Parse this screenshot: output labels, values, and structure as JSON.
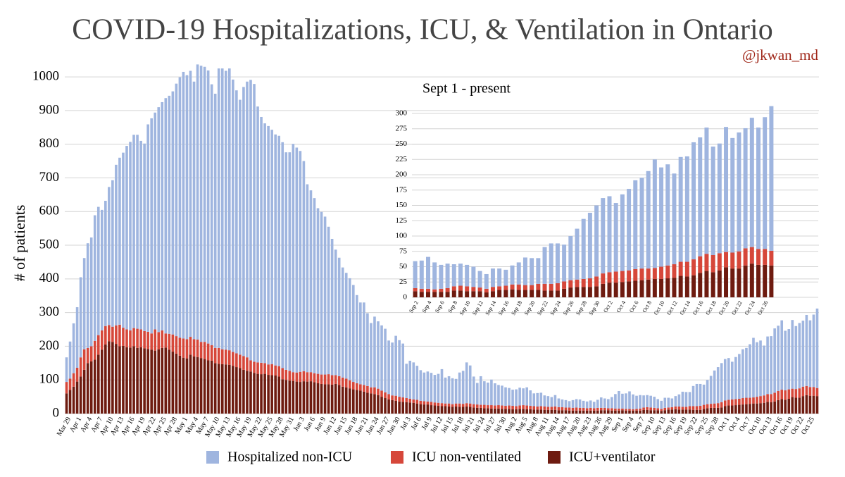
{
  "chart_data": [
    {
      "type": "bar",
      "stacked": true,
      "grid": true,
      "legend": "bottom",
      "title": "COVID-19 Hospitalizations, ICU, & Ventilation in Ontario",
      "subtitle": "@jkwan_md",
      "y_label": "# of patients",
      "ylim": [
        0,
        1040
      ],
      "yticks": [
        0,
        100,
        200,
        300,
        400,
        500,
        600,
        700,
        800,
        900,
        1000
      ],
      "categories": [
        "Mar 29",
        null,
        null,
        "Apr 1",
        null,
        null,
        "Apr 4",
        null,
        null,
        "Apr 7",
        null,
        null,
        "Apr 10",
        null,
        null,
        "Apr 13",
        null,
        null,
        "Apr 16",
        null,
        null,
        "Apr 19",
        null,
        null,
        "Apr 22",
        null,
        null,
        "Apr 25",
        null,
        null,
        "Apr 28",
        null,
        null,
        "May 1",
        null,
        null,
        "May 4",
        null,
        null,
        "May 7",
        null,
        null,
        "May 10",
        null,
        null,
        "May 13",
        null,
        null,
        "May 16",
        null,
        null,
        "May 19",
        null,
        null,
        "May 22",
        null,
        null,
        "May 25",
        null,
        null,
        "May 28",
        null,
        null,
        "May 31",
        null,
        null,
        "Jun 3",
        null,
        null,
        "Jun 6",
        null,
        null,
        "Jun 9",
        null,
        null,
        "Jun 12",
        null,
        null,
        "Jun 15",
        null,
        null,
        "Jun 18",
        null,
        null,
        "Jun 21",
        null,
        null,
        "Jun 24",
        null,
        null,
        "Jun 27",
        null,
        null,
        "Jun 30",
        null,
        null,
        "Jul 3",
        null,
        null,
        "Jul 6",
        null,
        null,
        "Jul 9",
        null,
        null,
        "Jul 12",
        null,
        null,
        "Jul 15",
        null,
        null,
        "Jul 18",
        null,
        null,
        "Jul 21",
        null,
        null,
        "Jul 24",
        null,
        null,
        "Jul 27",
        null,
        null,
        "Jul 30",
        null,
        null,
        "Aug 2",
        null,
        null,
        "Aug 5",
        null,
        null,
        "Aug 8",
        null,
        null,
        "Aug 11",
        null,
        null,
        "Aug 14",
        null,
        null,
        "Aug 17",
        null,
        null,
        "Aug 20",
        null,
        null,
        "Aug 23",
        null,
        null,
        "Aug 26",
        null,
        null,
        "Aug 29",
        null,
        null,
        "Sep 1",
        null,
        null,
        "Sep 4",
        null,
        null,
        "Sep 7",
        null,
        null,
        "Sep 10",
        null,
        null,
        "Sep 13",
        null,
        null,
        "Sep 16",
        null,
        null,
        "Sep 19",
        null,
        null,
        "Sep 22",
        null,
        null,
        "Sep 25",
        null,
        null,
        "Sep 28",
        null,
        null,
        "Oct 1",
        null,
        null,
        "Oct 4",
        null,
        null,
        "Oct 7",
        null,
        null,
        "Oct 10",
        null,
        null,
        "Oct 13",
        null,
        null,
        "Oct 16",
        null,
        null,
        "Oct 19",
        null,
        null,
        "Oct 22",
        null,
        null,
        "Oct 25",
        null,
        null
      ],
      "series": [
        {
          "name": "Hospitalized non-ICU",
          "color": "#9fb5df",
          "values": [
            73,
            110,
            148,
            180,
            238,
            271,
            311,
            323,
            373,
            381,
            358,
            372,
            410,
            435,
            477,
            496,
            520,
            545,
            560,
            574,
            576,
            560,
            557,
            616,
            639,
            644,
            668,
            678,
            699,
            707,
            722,
            750,
            774,
            792,
            784,
            790,
            765,
            817,
            820,
            817,
            811,
            775,
            755,
            830,
            834,
            828,
            837,
            809,
            781,
            757,
            799,
            819,
            833,
            825,
            760,
            730,
            712,
            708,
            696,
            686,
            684,
            671,
            646,
            649,
            678,
            668,
            656,
            624,
            558,
            540,
            520,
            492,
            483,
            469,
            438,
            405,
            373,
            352,
            327,
            314,
            303,
            288,
            262,
            243,
            245,
            216,
            191,
            210,
            200,
            194,
            189,
            159,
            157,
            178,
            168,
            160,
            102,
            113,
            110,
            101,
            91,
            85,
            89,
            86,
            82,
            86,
            101,
            77,
            81,
            77,
            73,
            92,
            98,
            121,
            113,
            82,
            64,
            85,
            70,
            67,
            76,
            66,
            60,
            59,
            55,
            52,
            48,
            50,
            53,
            50,
            54,
            46,
            38,
            40,
            40,
            33,
            32,
            29,
            34,
            26,
            23,
            22,
            19,
            23,
            25,
            25,
            21,
            20,
            22,
            19,
            24,
            31,
            28,
            27,
            33,
            43,
            52,
            44,
            46,
            52,
            44,
            39,
            40,
            36,
            36,
            35,
            33,
            27,
            24,
            30,
            29,
            26,
            31,
            36,
            45,
            44,
            42,
            60,
            66,
            65,
            60,
            72,
            83,
            98,
            107,
            116,
            123,
            124,
            112,
            125,
            133,
            145,
            148,
            159,
            177,
            162,
            165,
            148,
            171,
            172,
            191,
            194,
            206,
            177,
            179,
            204,
            187,
            194,
            196,
            211,
            198,
            215,
            236
          ]
        },
        {
          "name": "ICU non-ventilated",
          "color": "#d6473a",
          "values": [
            34,
            34,
            40,
            41,
            57,
            61,
            45,
            45,
            56,
            58,
            57,
            55,
            48,
            45,
            55,
            64,
            54,
            53,
            51,
            54,
            57,
            53,
            51,
            51,
            48,
            63,
            51,
            52,
            42,
            47,
            51,
            52,
            53,
            57,
            57,
            53,
            51,
            52,
            48,
            51,
            50,
            46,
            45,
            47,
            44,
            44,
            43,
            41,
            41,
            40,
            41,
            40,
            33,
            33,
            34,
            34,
            32,
            31,
            33,
            30,
            31,
            33,
            30,
            29,
            26,
            27,
            30,
            30,
            28,
            27,
            27,
            28,
            28,
            29,
            30,
            28,
            26,
            26,
            27,
            26,
            24,
            22,
            20,
            19,
            20,
            20,
            18,
            20,
            19,
            18,
            17,
            16,
            14,
            15,
            14,
            13,
            12,
            11,
            10,
            11,
            10,
            10,
            9,
            10,
            9,
            9,
            9,
            8,
            9,
            8,
            9,
            10,
            9,
            10,
            10,
            10,
            10,
            9,
            10,
            9,
            10,
            9,
            10,
            10,
            9,
            10,
            10,
            9,
            10,
            11,
            11,
            10,
            10,
            9,
            10,
            10,
            9,
            9,
            10,
            9,
            9,
            8,
            9,
            8,
            9,
            8,
            8,
            7,
            8,
            7,
            8,
            7,
            7,
            6,
            7,
            6,
            6,
            5,
            5,
            5,
            4,
            5,
            6,
            7,
            8,
            8,
            7,
            6,
            6,
            7,
            6,
            7,
            8,
            9,
            8,
            8,
            10,
            11,
            11,
            12,
            12,
            12,
            12,
            13,
            14,
            16,
            17,
            17,
            18,
            18,
            18,
            19,
            19,
            18,
            18,
            20,
            21,
            22,
            23,
            24,
            26,
            27,
            28,
            28,
            28,
            25,
            26,
            28,
            28,
            27,
            26,
            26,
            24
          ]
        },
        {
          "name": "ICU+ventilator",
          "color": "#6e1b10",
          "values": [
            60,
            70,
            80,
            95,
            110,
            130,
            150,
            155,
            160,
            175,
            190,
            205,
            215,
            213,
            207,
            200,
            201,
            197,
            196,
            200,
            195,
            197,
            194,
            192,
            190,
            187,
            191,
            195,
            196,
            190,
            184,
            178,
            172,
            166,
            164,
            175,
            170,
            168,
            165,
            162,
            158,
            157,
            150,
            148,
            147,
            146,
            145,
            142,
            138,
            135,
            130,
            127,
            125,
            121,
            118,
            117,
            118,
            115,
            114,
            113,
            110,
            102,
            100,
            98,
            97,
            95,
            94,
            96,
            95,
            96,
            93,
            90,
            88,
            87,
            87,
            86,
            88,
            85,
            80,
            78,
            75,
            72,
            70,
            68,
            65,
            62,
            60,
            58,
            55,
            50,
            46,
            42,
            40,
            38,
            36,
            35,
            34,
            33,
            32,
            30,
            28,
            27,
            27,
            25,
            24,
            23,
            22,
            22,
            21,
            20,
            21,
            20,
            20,
            21,
            20,
            18,
            17,
            17,
            16,
            16,
            15,
            15,
            15,
            14,
            14,
            14,
            13,
            13,
            14,
            14,
            13,
            13,
            12,
            12,
            12,
            11,
            11,
            11,
            11,
            10,
            10,
            10,
            9,
            9,
            9,
            9,
            9,
            9,
            9,
            9,
            9,
            10,
            10,
            10,
            9,
            9,
            9,
            10,
            9,
            9,
            9,
            9,
            9,
            11,
            11,
            10,
            10,
            10,
            8,
            10,
            12,
            12,
            13,
            12,
            12,
            12,
            12,
            11,
            11,
            11,
            14,
            16,
            17,
            17,
            17,
            18,
            22,
            24,
            24,
            25,
            26,
            27,
            28,
            29,
            30,
            30,
            31,
            32,
            35,
            34,
            36,
            40,
            43,
            41,
            44,
            49,
            47,
            47,
            52,
            55,
            53,
            53,
            52
          ]
        }
      ]
    },
    {
      "type": "bar",
      "stacked": true,
      "grid": true,
      "title": "Sept 1 - present",
      "ylim": [
        0,
        315
      ],
      "yticks": [
        0,
        25,
        50,
        75,
        100,
        125,
        150,
        175,
        200,
        225,
        250,
        275,
        300
      ],
      "categories": [
        "Sep 2",
        null,
        "Sep 4",
        null,
        "Sep 6",
        null,
        "Sep 8",
        null,
        "Sep 10",
        null,
        "Sep 12",
        null,
        "Sep 14",
        null,
        "Sep 16",
        null,
        "Sep 18",
        null,
        "Sep 20",
        null,
        "Sep 22",
        null,
        "Sep 24",
        null,
        "Sep 26",
        null,
        "Sep 28",
        null,
        "Sep 30",
        null,
        "Oct 2",
        null,
        "Oct 4",
        null,
        "Oct 6",
        null,
        "Oct 8",
        null,
        "Oct 10",
        null,
        "Oct 12",
        null,
        "Oct 14",
        null,
        "Oct 16",
        null,
        "Oct 18",
        null,
        "Oct 20",
        null,
        "Oct 22",
        null,
        "Oct 24",
        null,
        "Oct 26",
        null
      ],
      "series": [
        {
          "color": "#9fb5df",
          "values": [
            44,
            46,
            52,
            44,
            39,
            40,
            36,
            36,
            35,
            33,
            27,
            24,
            30,
            29,
            26,
            31,
            36,
            45,
            44,
            42,
            60,
            66,
            65,
            60,
            72,
            83,
            98,
            107,
            116,
            123,
            124,
            112,
            125,
            133,
            145,
            148,
            159,
            177,
            162,
            165,
            148,
            171,
            172,
            191,
            194,
            206,
            177,
            179,
            204,
            187,
            194,
            196,
            211,
            198,
            215,
            236
          ]
        },
        {
          "color": "#d6473a",
          "values": [
            5,
            5,
            5,
            4,
            5,
            6,
            7,
            8,
            8,
            7,
            6,
            6,
            7,
            6,
            7,
            8,
            9,
            8,
            8,
            10,
            11,
            11,
            12,
            12,
            12,
            12,
            13,
            14,
            16,
            17,
            17,
            18,
            18,
            18,
            19,
            19,
            18,
            18,
            20,
            21,
            22,
            23,
            24,
            26,
            27,
            28,
            28,
            28,
            25,
            26,
            28,
            28,
            27,
            26,
            26,
            24
          ]
        },
        {
          "color": "#6e1b10",
          "values": [
            10,
            9,
            9,
            9,
            9,
            9,
            11,
            11,
            10,
            10,
            10,
            8,
            10,
            12,
            12,
            13,
            12,
            12,
            12,
            12,
            11,
            11,
            11,
            14,
            16,
            17,
            17,
            17,
            18,
            22,
            24,
            24,
            25,
            26,
            27,
            28,
            29,
            30,
            30,
            31,
            32,
            35,
            34,
            36,
            40,
            43,
            41,
            44,
            49,
            47,
            47,
            52,
            55,
            53,
            53,
            52
          ]
        }
      ]
    }
  ]
}
